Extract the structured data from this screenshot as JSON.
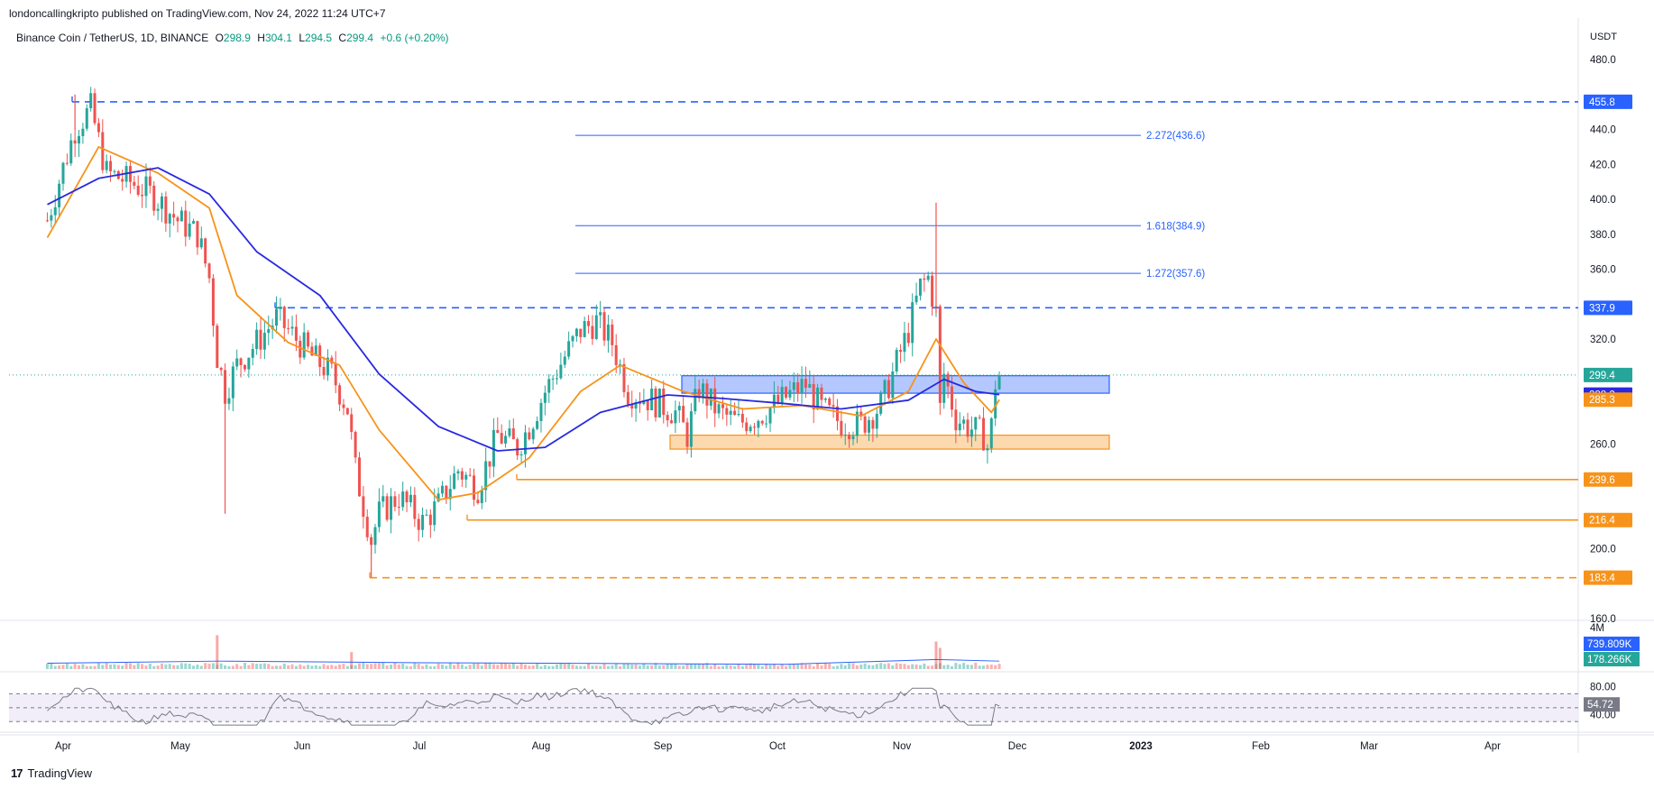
{
  "header": {
    "publish_line": "londoncallingkripto published on TradingView.com, Nov 24, 2022 11:24 UTC+7",
    "symbol_line": "Binance Coin / TetherUS, 1D, BINANCE",
    "ohlc": {
      "o_label": "O",
      "o_value": "298.9",
      "h_label": "H",
      "h_value": "304.1",
      "l_label": "L",
      "l_value": "294.5",
      "c_label": "C",
      "c_value": "299.4",
      "change": "+0.6 (+0.20%)"
    },
    "currency": "USDT"
  },
  "footer": {
    "brand": "TradingView"
  },
  "colors": {
    "up": "#26a69a",
    "down": "#ef5350",
    "ma_fast": "#f7931a",
    "ma_slow": "#2929e0",
    "blue_level": "#2962ff",
    "orange_level": "#f7931a",
    "rsi": "#787b86",
    "rsi_band": "#ede7f6"
  },
  "chart_data": [
    {
      "type": "candlestick",
      "symbol": "Binance Coin / TetherUS",
      "interval": "1D",
      "y_axis_ticks": [
        "480.0",
        "440.0",
        "420.0",
        "400.0",
        "380.0",
        "360.0",
        "320.0",
        "260.0",
        "200.0",
        "160.0"
      ],
      "ylim": [
        160,
        490
      ],
      "x_axis_labels": [
        "Apr",
        "May",
        "Jun",
        "Jul",
        "Aug",
        "Sep",
        "Oct",
        "Nov",
        "Dec",
        "2023",
        "Feb",
        "Mar",
        "Apr"
      ],
      "last_price": "299.4",
      "price_badges": [
        {
          "label": "455.8",
          "value": 455.8,
          "color": "#2962ff"
        },
        {
          "label": "337.9",
          "value": 337.9,
          "color": "#2962ff"
        },
        {
          "label": "299.4",
          "value": 299.4,
          "color": "#26a69a"
        },
        {
          "label": "288.2",
          "value": 288.2,
          "color": "#2929e0"
        },
        {
          "label": "285.3",
          "value": 285.3,
          "color": "#f7931a"
        },
        {
          "label": "239.6",
          "value": 239.6,
          "color": "#f7931a"
        },
        {
          "label": "216.4",
          "value": 216.4,
          "color": "#f7931a"
        },
        {
          "label": "183.4",
          "value": 183.4,
          "color": "#f7931a"
        }
      ],
      "horizontal_levels": [
        {
          "value": 455.8,
          "style": "dashed",
          "color": "#2962ff"
        },
        {
          "value": 337.9,
          "style": "dashed",
          "color": "#2962ff"
        },
        {
          "value": 239.6,
          "style": "solid",
          "color": "#f7931a"
        },
        {
          "value": 216.4,
          "style": "solid",
          "color": "#f7931a"
        },
        {
          "value": 183.4,
          "style": "dashed",
          "color": "#f7931a"
        }
      ],
      "fib_levels": [
        {
          "label": "2.272(436.6)",
          "value": 436.6
        },
        {
          "label": "1.618(384.9)",
          "value": 384.9
        },
        {
          "label": "1.272(357.6)",
          "value": 357.6
        }
      ],
      "zones": [
        {
          "name": "resistance",
          "from": 289,
          "to": 299,
          "color": "#2962ff"
        },
        {
          "name": "support",
          "from": 257,
          "to": 265,
          "color": "#f7931a"
        }
      ],
      "close_path": [
        [
          "Mar 27",
          388
        ],
        [
          "Apr 1",
          418
        ],
        [
          "Apr 4",
          440
        ],
        [
          "Apr 8",
          452
        ],
        [
          "Apr 12",
          415
        ],
        [
          "Apr 18",
          410
        ],
        [
          "Apr 24",
          402
        ],
        [
          "Apr 30",
          388
        ],
        [
          "May 5",
          380
        ],
        [
          "May 8",
          355
        ],
        [
          "May 10",
          310
        ],
        [
          "May 12",
          290
        ],
        [
          "May 15",
          305
        ],
        [
          "May 20",
          318
        ],
        [
          "May 25",
          332
        ],
        [
          "May 28",
          325
        ],
        [
          "Jun 3",
          310
        ],
        [
          "Jun 8",
          300
        ],
        [
          "Jun 12",
          280
        ],
        [
          "Jun 14",
          245
        ],
        [
          "Jun 18",
          205
        ],
        [
          "Jun 20",
          220
        ],
        [
          "Jun 25",
          230
        ],
        [
          "Jul 1",
          215
        ],
        [
          "Jul 5",
          225
        ],
        [
          "Jul 10",
          245
        ],
        [
          "Jul 15",
          235
        ],
        [
          "Jul 20",
          265
        ],
        [
          "Jul 25",
          258
        ],
        [
          "Jul 28",
          270
        ],
        [
          "Aug 1",
          290
        ],
        [
          "Aug 6",
          310
        ],
        [
          "Aug 10",
          325
        ],
        [
          "Aug 14",
          330
        ],
        [
          "Aug 18",
          318
        ],
        [
          "Aug 22",
          290
        ],
        [
          "Aug 28",
          285
        ],
        [
          "Sep 3",
          278
        ],
        [
          "Sep 6",
          265
        ],
        [
          "Sep 9",
          292
        ],
        [
          "Sep 14",
          278
        ],
        [
          "Sep 19",
          272
        ],
        [
          "Sep 24",
          276
        ],
        [
          "Sep 28",
          282
        ],
        [
          "Oct 3",
          290
        ],
        [
          "Oct 6",
          294
        ],
        [
          "Oct 10",
          280
        ],
        [
          "Oct 15",
          272
        ],
        [
          "Oct 20",
          271
        ],
        [
          "Oct 25",
          282
        ],
        [
          "Oct 28",
          300
        ],
        [
          "Nov 1",
          325
        ],
        [
          "Nov 4",
          350
        ],
        [
          "Nov 6",
          355
        ],
        [
          "Nov 8",
          335
        ],
        [
          "Nov 9",
          280
        ],
        [
          "Nov 10",
          300
        ],
        [
          "Nov 13",
          275
        ],
        [
          "Nov 16",
          270
        ],
        [
          "Nov 20",
          265
        ],
        [
          "Nov 21",
          258
        ],
        [
          "Nov 22",
          270
        ],
        [
          "Nov 23",
          295
        ],
        [
          "Nov 24",
          299.4
        ]
      ],
      "wicks_of_note": [
        {
          "date": "Apr 4",
          "high": 460
        },
        {
          "date": "May 12",
          "low": 220
        },
        {
          "date": "Jun 18",
          "low": 183.4
        },
        {
          "date": "Nov 8",
          "high": 398
        }
      ],
      "series": [
        {
          "name": "",
          "role": "fast moving average",
          "color": "#f7931a",
          "values": [
            [
              "Mar 27",
              378
            ],
            [
              "Apr 10",
              430
            ],
            [
              "Apr 25",
              415
            ],
            [
              "May 8",
              395
            ],
            [
              "May 15",
              345
            ],
            [
              "May 28",
              318
            ],
            [
              "Jun 10",
              305
            ],
            [
              "Jun 20",
              268
            ],
            [
              "Jul 5",
              228
            ],
            [
              "Jul 15",
              232
            ],
            [
              "Jul 28",
              252
            ],
            [
              "Aug 10",
              290
            ],
            [
              "Aug 20",
              305
            ],
            [
              "Sep 5",
              290
            ],
            [
              "Sep 20",
              280
            ],
            [
              "Oct 5",
              282
            ],
            [
              "Oct 20",
              276
            ],
            [
              "Nov 1",
              290
            ],
            [
              "Nov 8",
              320
            ],
            [
              "Nov 15",
              295
            ],
            [
              "Nov 22",
              278
            ],
            [
              "Nov 24",
              285.3
            ]
          ]
        },
        {
          "name": "",
          "role": "slow moving average",
          "color": "#2929e0",
          "values": [
            [
              "Mar 27",
              397
            ],
            [
              "Apr 10",
              412
            ],
            [
              "Apr 25",
              418
            ],
            [
              "May 8",
              403
            ],
            [
              "May 20",
              370
            ],
            [
              "Jun 5",
              345
            ],
            [
              "Jun 20",
              300
            ],
            [
              "Jul 5",
              270
            ],
            [
              "Jul 20",
              256
            ],
            [
              "Aug 1",
              258
            ],
            [
              "Aug 15",
              278
            ],
            [
              "Sep 1",
              288
            ],
            [
              "Sep 15",
              286
            ],
            [
              "Oct 1",
              283
            ],
            [
              "Oct 15",
              280
            ],
            [
              "Nov 1",
              285
            ],
            [
              "Nov 10",
              297
            ],
            [
              "Nov 18",
              290
            ],
            [
              "Nov 24",
              288.2
            ]
          ]
        }
      ]
    },
    {
      "type": "bar",
      "panel": "volume",
      "y_axis_ticks": [
        "4M"
      ],
      "badges": [
        {
          "label": "739.809K",
          "color": "#2962ff"
        },
        {
          "label": "178.266K",
          "color": "#26a69a"
        }
      ],
      "spikes": [
        {
          "date": "May 10",
          "value": 3.2
        },
        {
          "date": "Jun 13",
          "value": 1.6
        },
        {
          "date": "Nov 8",
          "value": 2.6
        },
        {
          "date": "Nov 9",
          "value": 2.0
        }
      ]
    },
    {
      "type": "line",
      "panel": "rsi",
      "y_axis_ticks": [
        "80.00",
        "40.00"
      ],
      "band": [
        30,
        70
      ],
      "value_label": "54.72",
      "ylim": [
        20,
        90
      ]
    }
  ]
}
